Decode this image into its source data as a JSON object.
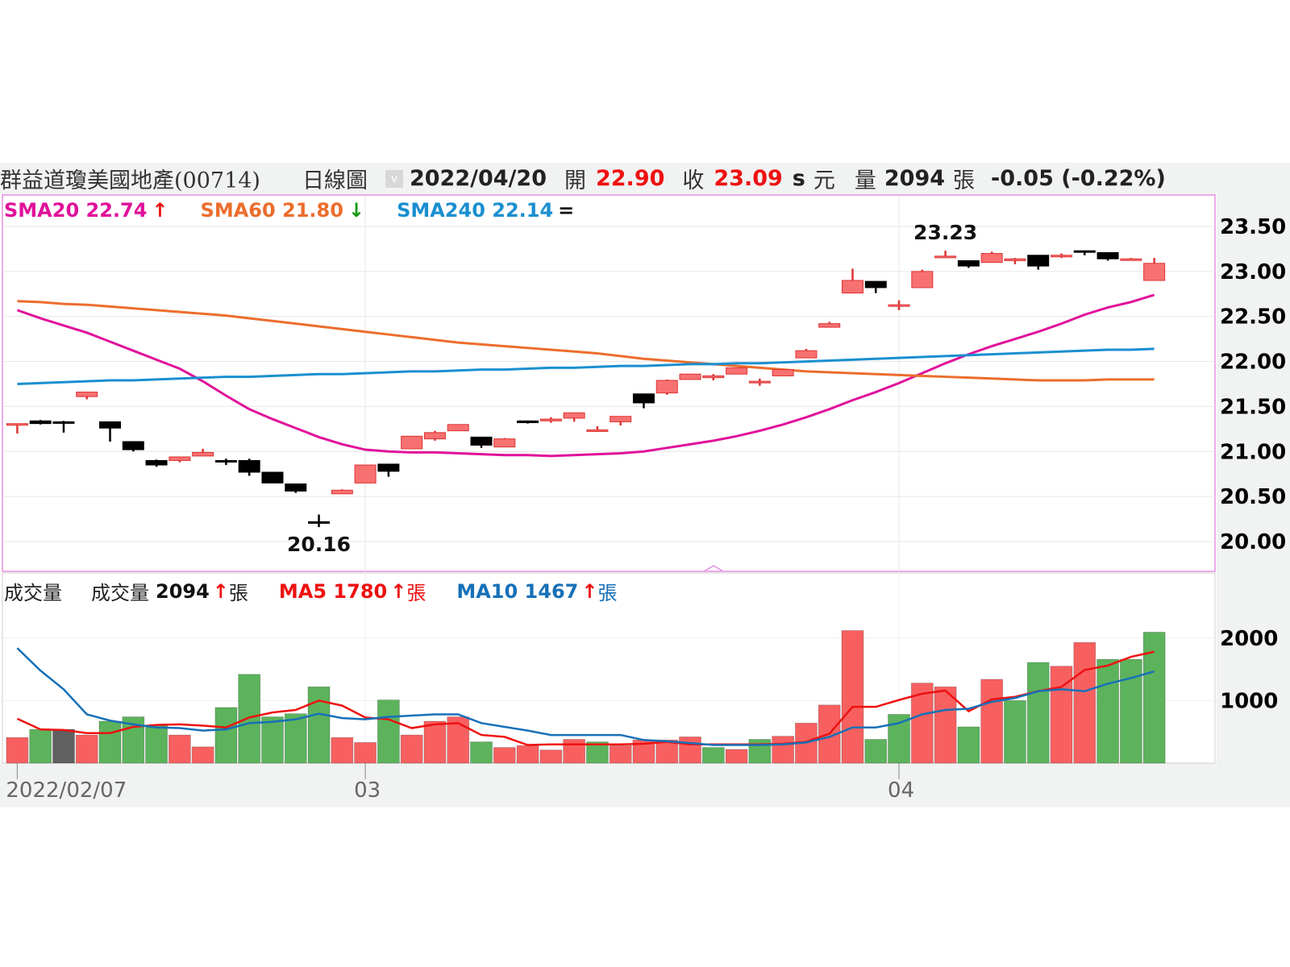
{
  "header": {
    "title": "群益道瓊美國地產(00714)",
    "chart_kind": "日線圖",
    "checkbox_glyph": "v",
    "date": "2022/04/20",
    "open_label": "開",
    "open": "22.90",
    "close_label": "收",
    "close": "23.09",
    "close_flag": "s",
    "currency": "元",
    "volume_label": "量",
    "volume": "2094",
    "volume_unit": "張",
    "change": "-0.05 (-0.22%)"
  },
  "price_legend": {
    "sma20": {
      "label": "SMA20 22.74",
      "arrow": "↑",
      "color": "#e0119a"
    },
    "sma60": {
      "label": "SMA60 21.80",
      "arrow": "↓",
      "color": "#ec6d2c"
    },
    "sma240": {
      "label": "SMA240 22.14",
      "arrow": "=",
      "color": "#1a8fd0"
    }
  },
  "volume_legend": {
    "title": "成交量",
    "vol_label": "成交量",
    "vol_value": "2094",
    "vol_arrow": "↑",
    "unit": "張",
    "ma5": {
      "label": "MA5 1780",
      "arrow": "↑",
      "unit": "張",
      "color": "#ee1111"
    },
    "ma10": {
      "label": "MA10 1467",
      "arrow": "↑",
      "unit": "張",
      "color": "#1670b8"
    }
  },
  "chart_data": [
    {
      "type": "candlestick",
      "ylim": [
        20.0,
        23.5
      ],
      "yticks": [
        "23.50",
        "23.00",
        "22.50",
        "22.00",
        "21.50",
        "21.00",
        "20.50",
        "20.00"
      ],
      "xtick_labels": [
        {
          "index": 0,
          "label": "2022/02/07"
        },
        {
          "index": 15,
          "label": "03"
        },
        {
          "index": 38,
          "label": "04"
        }
      ],
      "annotations": [
        {
          "index": 13,
          "label": "20.16",
          "at": "low"
        },
        {
          "index": 40,
          "label": "23.23",
          "at": "high"
        }
      ],
      "grid": true,
      "colors": {
        "up": "#f87171",
        "up_edge": "#d33",
        "down": "#000000"
      },
      "ohlc": [
        [
          21.3,
          21.31,
          21.2,
          21.31
        ],
        [
          21.34,
          21.35,
          21.3,
          21.31
        ],
        [
          21.33,
          21.34,
          21.21,
          21.32
        ],
        [
          21.61,
          21.66,
          21.58,
          21.66
        ],
        [
          21.33,
          21.33,
          21.11,
          21.26
        ],
        [
          21.11,
          21.11,
          21.0,
          21.02
        ],
        [
          20.9,
          20.91,
          20.83,
          20.85
        ],
        [
          20.9,
          20.94,
          20.88,
          20.94
        ],
        [
          20.95,
          21.03,
          20.95,
          20.99
        ],
        [
          20.9,
          20.92,
          20.85,
          20.89
        ],
        [
          20.9,
          20.92,
          20.73,
          20.77
        ],
        [
          20.77,
          20.77,
          20.65,
          20.65
        ],
        [
          20.64,
          20.64,
          20.54,
          20.56
        ],
        [
          20.22,
          20.3,
          20.16,
          20.21
        ],
        [
          20.53,
          20.58,
          20.53,
          20.57
        ],
        [
          20.65,
          20.85,
          20.65,
          20.85
        ],
        [
          20.86,
          20.86,
          20.72,
          20.78
        ],
        [
          21.03,
          21.17,
          21.03,
          21.17
        ],
        [
          21.14,
          21.23,
          21.12,
          21.21
        ],
        [
          21.23,
          21.3,
          21.23,
          21.3
        ],
        [
          21.16,
          21.16,
          21.04,
          21.07
        ],
        [
          21.05,
          21.15,
          21.05,
          21.14
        ],
        [
          21.34,
          21.34,
          21.31,
          21.32
        ],
        [
          21.34,
          21.38,
          21.32,
          21.36
        ],
        [
          21.37,
          21.43,
          21.33,
          21.43
        ],
        [
          21.23,
          21.28,
          21.22,
          21.24
        ],
        [
          21.33,
          21.39,
          21.29,
          21.39
        ],
        [
          21.64,
          21.64,
          21.48,
          21.54
        ],
        [
          21.65,
          21.8,
          21.63,
          21.79
        ],
        [
          21.8,
          21.86,
          21.8,
          21.86
        ],
        [
          21.82,
          21.86,
          21.79,
          21.84
        ],
        [
          21.86,
          21.93,
          21.86,
          21.93
        ],
        [
          21.77,
          21.81,
          21.73,
          21.78
        ],
        [
          21.84,
          21.91,
          21.84,
          21.91
        ],
        [
          22.04,
          22.14,
          22.04,
          22.12
        ],
        [
          22.38,
          22.44,
          22.38,
          22.42
        ],
        [
          22.76,
          23.03,
          22.76,
          22.9
        ],
        [
          22.89,
          22.89,
          22.76,
          22.82
        ],
        [
          22.63,
          22.68,
          22.57,
          22.63
        ],
        [
          22.82,
          23.02,
          22.82,
          23.0
        ],
        [
          23.16,
          23.23,
          23.15,
          23.17
        ],
        [
          23.12,
          23.12,
          23.04,
          23.06
        ],
        [
          23.1,
          23.22,
          23.1,
          23.2
        ],
        [
          23.12,
          23.15,
          23.08,
          23.14
        ],
        [
          23.18,
          23.18,
          23.02,
          23.06
        ],
        [
          23.17,
          23.2,
          23.15,
          23.18
        ],
        [
          23.23,
          23.23,
          23.18,
          23.22
        ],
        [
          23.21,
          23.21,
          23.12,
          23.14
        ],
        [
          23.13,
          23.15,
          23.12,
          23.14
        ],
        [
          22.9,
          23.15,
          22.9,
          23.09
        ]
      ],
      "series": [
        {
          "name": "SMA20",
          "color": "#e0119a",
          "values": [
            22.57,
            22.48,
            22.4,
            22.32,
            22.22,
            22.12,
            22.02,
            21.92,
            21.78,
            21.62,
            21.47,
            21.36,
            21.26,
            21.16,
            21.08,
            21.02,
            21.0,
            20.99,
            20.99,
            20.98,
            20.97,
            20.96,
            20.96,
            20.95,
            20.96,
            20.97,
            20.98,
            21.0,
            21.04,
            21.08,
            21.12,
            21.17,
            21.23,
            21.3,
            21.38,
            21.47,
            21.57,
            21.66,
            21.76,
            21.87,
            21.98,
            22.08,
            22.17,
            22.25,
            22.33,
            22.42,
            22.52,
            22.6,
            22.66,
            22.74
          ]
        },
        {
          "name": "SMA60",
          "color": "#ec6d2c",
          "values": [
            22.67,
            22.66,
            22.64,
            22.63,
            22.61,
            22.59,
            22.57,
            22.55,
            22.53,
            22.51,
            22.48,
            22.45,
            22.42,
            22.39,
            22.36,
            22.33,
            22.3,
            22.27,
            22.24,
            22.21,
            22.19,
            22.17,
            22.15,
            22.13,
            22.11,
            22.09,
            22.06,
            22.03,
            22.01,
            21.99,
            21.97,
            21.95,
            21.93,
            21.91,
            21.89,
            21.88,
            21.87,
            21.86,
            21.85,
            21.84,
            21.83,
            21.82,
            21.81,
            21.8,
            21.79,
            21.79,
            21.79,
            21.8,
            21.8,
            21.8
          ]
        },
        {
          "name": "SMA240",
          "color": "#1a8fd0",
          "values": [
            21.75,
            21.76,
            21.77,
            21.78,
            21.79,
            21.79,
            21.8,
            21.81,
            21.82,
            21.83,
            21.83,
            21.84,
            21.85,
            21.86,
            21.86,
            21.87,
            21.88,
            21.89,
            21.89,
            21.9,
            21.91,
            21.91,
            21.92,
            21.93,
            21.93,
            21.94,
            21.95,
            21.95,
            21.96,
            21.97,
            21.97,
            21.98,
            21.98,
            21.99,
            22.0,
            22.01,
            22.02,
            22.03,
            22.04,
            22.05,
            22.06,
            22.07,
            22.08,
            22.09,
            22.1,
            22.11,
            22.12,
            22.13,
            22.13,
            22.14
          ]
        }
      ]
    },
    {
      "type": "bar",
      "ylim": [
        0,
        2350
      ],
      "yticks": [
        "2000",
        "1000"
      ],
      "colors": {
        "r": "#f86060",
        "g": "#5cb35c",
        "k": "#606060"
      },
      "values": [
        410,
        540,
        540,
        450,
        670,
        740,
        600,
        450,
        260,
        890,
        1420,
        740,
        790,
        1220,
        410,
        330,
        1010,
        450,
        670,
        740,
        340,
        250,
        280,
        210,
        380,
        340,
        280,
        370,
        370,
        420,
        250,
        220,
        380,
        430,
        640,
        930,
        2120,
        380,
        780,
        1280,
        1220,
        580,
        1340,
        1000,
        1610,
        1550,
        1930,
        1660,
        1660,
        2094
      ],
      "bar_colors": [
        "r",
        "g",
        "k",
        "r",
        "g",
        "g",
        "g",
        "r",
        "r",
        "g",
        "g",
        "g",
        "g",
        "g",
        "r",
        "r",
        "g",
        "r",
        "r",
        "r",
        "g",
        "r",
        "r",
        "r",
        "r",
        "g",
        "r",
        "r",
        "r",
        "r",
        "g",
        "r",
        "g",
        "r",
        "r",
        "r",
        "r",
        "g",
        "g",
        "r",
        "r",
        "g",
        "r",
        "g",
        "g",
        "r",
        "r",
        "g",
        "g",
        "g"
      ],
      "series": [
        {
          "name": "MA5",
          "color": "#ee1111",
          "values": [
            710,
            540,
            530,
            480,
            480,
            580,
            610,
            620,
            600,
            570,
            730,
            810,
            850,
            1000,
            920,
            730,
            700,
            560,
            620,
            640,
            450,
            420,
            290,
            300,
            300,
            300,
            300,
            310,
            340,
            300,
            300,
            300,
            300,
            310,
            340,
            470,
            900,
            900,
            1010,
            1110,
            1160,
            830,
            1020,
            1060,
            1150,
            1220,
            1490,
            1560,
            1700,
            1780
          ]
        },
        {
          "name": "MA10",
          "color": "#1670b8",
          "values": [
            1840,
            1480,
            1180,
            780,
            680,
            620,
            570,
            560,
            520,
            540,
            640,
            660,
            700,
            790,
            720,
            700,
            740,
            760,
            780,
            780,
            640,
            580,
            520,
            450,
            450,
            450,
            450,
            370,
            350,
            320,
            290,
            290,
            290,
            300,
            330,
            420,
            570,
            570,
            640,
            780,
            850,
            870,
            980,
            1040,
            1150,
            1180,
            1150,
            1270,
            1360,
            1467
          ]
        }
      ]
    }
  ]
}
